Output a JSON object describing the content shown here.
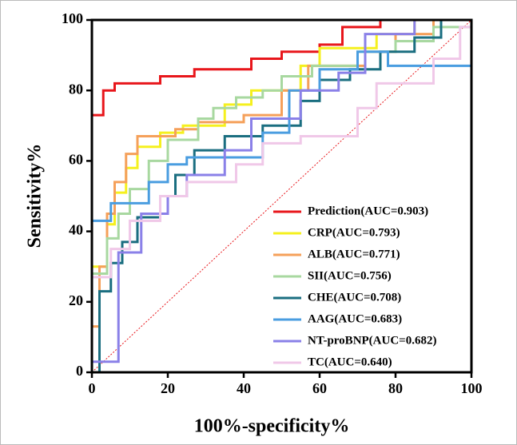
{
  "chart_data": {
    "type": "line",
    "xlabel": "100%-specificity%",
    "ylabel": "Sensitivity%",
    "xlim": [
      0,
      100
    ],
    "ylim": [
      0,
      100
    ],
    "xticks": [
      0,
      20,
      40,
      60,
      80,
      100
    ],
    "yticks": [
      0,
      20,
      40,
      60,
      80,
      100
    ],
    "series": [
      {
        "name": "Prediction(AUC=0.903)",
        "color": "#e8161b",
        "x": [
          0,
          0,
          3,
          3,
          6,
          6,
          18,
          18,
          27,
          27,
          42,
          42,
          50,
          50,
          60,
          60,
          66,
          66,
          76,
          76,
          100
        ],
        "values": [
          0,
          73,
          73,
          80,
          80,
          82,
          82,
          84,
          84,
          86,
          86,
          89,
          89,
          91,
          91,
          93,
          93,
          98,
          98,
          100,
          100
        ]
      },
      {
        "name": "CRP(AUC=0.793)",
        "color": "#f5f01e",
        "x": [
          0,
          0,
          4,
          4,
          6,
          6,
          9,
          9,
          12,
          12,
          18,
          18,
          24,
          24,
          35,
          35,
          42,
          42,
          55,
          55,
          60,
          60,
          75,
          75,
          85,
          85,
          100
        ],
        "values": [
          0,
          30,
          30,
          42,
          42,
          51,
          51,
          58,
          58,
          64,
          64,
          68,
          68,
          70,
          70,
          76,
          76,
          80,
          80,
          87,
          87,
          92,
          92,
          96,
          96,
          100,
          100
        ]
      },
      {
        "name": "ALB(AUC=0.771)",
        "color": "#f5a05a",
        "x": [
          0,
          0,
          2,
          2,
          4,
          4,
          6,
          6,
          9,
          9,
          12,
          12,
          22,
          22,
          28,
          28,
          40,
          40,
          50,
          50,
          57,
          57,
          72,
          72,
          80,
          80,
          90,
          90,
          100
        ],
        "values": [
          0,
          13,
          13,
          30,
          30,
          45,
          45,
          54,
          54,
          62,
          62,
          67,
          67,
          69,
          69,
          71,
          71,
          73,
          73,
          80,
          80,
          87,
          87,
          91,
          91,
          96,
          96,
          100,
          100
        ]
      },
      {
        "name": "SII(AUC=0.756)",
        "color": "#a8d8a0",
        "x": [
          0,
          0,
          4,
          4,
          7,
          7,
          10,
          10,
          15,
          15,
          20,
          20,
          28,
          28,
          32,
          32,
          38,
          38,
          45,
          45,
          50,
          50,
          58,
          58,
          70,
          70,
          80,
          80,
          90,
          90,
          100
        ],
        "values": [
          0,
          28,
          28,
          38,
          38,
          45,
          45,
          52,
          52,
          60,
          60,
          66,
          66,
          72,
          72,
          75,
          75,
          78,
          78,
          80,
          80,
          84,
          84,
          87,
          87,
          91,
          91,
          94,
          94,
          98,
          98
        ]
      },
      {
        "name": "CHE(AUC=0.708)",
        "color": "#1a6e80",
        "x": [
          0,
          2,
          2,
          5,
          5,
          8,
          8,
          12,
          12,
          18,
          18,
          22,
          22,
          27,
          27,
          35,
          35,
          45,
          45,
          55,
          55,
          60,
          60,
          68,
          68,
          76,
          76,
          85,
          85,
          92,
          92,
          100
        ],
        "values": [
          0,
          0,
          23,
          23,
          31,
          31,
          37,
          37,
          44,
          44,
          50,
          50,
          56,
          56,
          63,
          63,
          67,
          67,
          70,
          70,
          77,
          77,
          83,
          83,
          86,
          86,
          91,
          91,
          95,
          95,
          100,
          100
        ]
      },
      {
        "name": "AAG(AUC=0.683)",
        "color": "#4a9de0",
        "x": [
          0,
          0,
          5,
          5,
          15,
          15,
          20,
          20,
          25,
          25,
          45,
          45,
          52,
          52,
          60,
          60,
          70,
          70,
          78,
          78,
          100,
          100
        ],
        "values": [
          0,
          43,
          43,
          48,
          48,
          54,
          54,
          59,
          59,
          61,
          61,
          68,
          68,
          80,
          80,
          86,
          86,
          91,
          91,
          87,
          87,
          100
        ]
      },
      {
        "name": "NT-proBNP(AUC=0.682)",
        "color": "#8a80e8",
        "x": [
          0,
          0,
          7,
          7,
          13,
          13,
          20,
          20,
          25,
          25,
          35,
          35,
          42,
          42,
          55,
          55,
          65,
          65,
          72,
          72,
          85,
          85,
          100
        ],
        "values": [
          0,
          3,
          3,
          34,
          34,
          45,
          45,
          50,
          50,
          56,
          56,
          63,
          63,
          72,
          72,
          80,
          80,
          85,
          85,
          96,
          96,
          100,
          100
        ]
      },
      {
        "name": "TC(AUC=0.640)",
        "color": "#f0c8e8",
        "x": [
          0,
          0,
          5,
          5,
          10,
          10,
          18,
          18,
          25,
          25,
          38,
          38,
          45,
          45,
          55,
          55,
          70,
          70,
          75,
          75,
          90,
          90,
          97,
          97,
          100
        ],
        "values": [
          0,
          27,
          27,
          35,
          35,
          43,
          43,
          50,
          50,
          54,
          54,
          59,
          59,
          65,
          65,
          67,
          67,
          75,
          75,
          82,
          82,
          89,
          89,
          98,
          98
        ]
      }
    ]
  }
}
